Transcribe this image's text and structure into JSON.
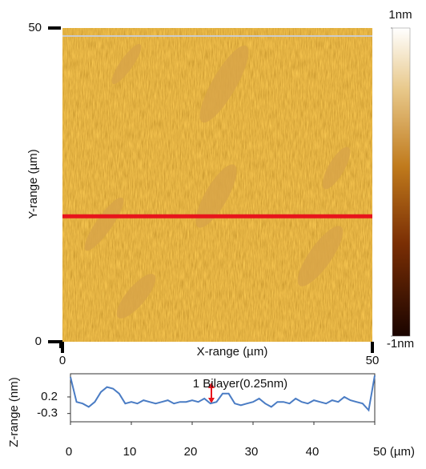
{
  "chart_data": [
    {
      "type": "image",
      "xlabel": "X-range (µm)",
      "ylabel": "Y-range (µm)",
      "xlim": [
        0,
        50
      ],
      "ylim": [
        0,
        50
      ],
      "xticks": [
        0,
        50
      ],
      "yticks": [
        0,
        50
      ],
      "profile_y": 20,
      "profile_color": "#e8141c",
      "clim": [
        -1,
        1
      ],
      "cticks": [
        {
          "value": 1,
          "label": "1nm"
        },
        {
          "value": -1,
          "label": "-1nm"
        }
      ]
    },
    {
      "type": "line",
      "ylabel": "Z-range (nm)",
      "color": "#4a7cc4",
      "annotation": "1 Bilayer(0.25nm)",
      "xlim": [
        0,
        50
      ],
      "ylim": [
        -0.55,
        0.9
      ],
      "xticks": [
        0,
        10,
        20,
        30,
        40,
        {
          "value": 50,
          "label": "50 (µm)"
        }
      ],
      "yticks": [
        0.2,
        -0.3
      ],
      "x": [
        0,
        1,
        2,
        3,
        4,
        5,
        6,
        7,
        8,
        9,
        10,
        11,
        12,
        13,
        14,
        15,
        16,
        17,
        18,
        19,
        20,
        21,
        22,
        23,
        24,
        25,
        26,
        27,
        28,
        29,
        30,
        31,
        32,
        33,
        34,
        35,
        36,
        37,
        38,
        39,
        40,
        41,
        42,
        43,
        44,
        45,
        46,
        47,
        48,
        49,
        50
      ],
      "values": [
        0.8,
        0.05,
        0.0,
        -0.1,
        0.05,
        0.35,
        0.5,
        0.45,
        0.3,
        0.0,
        0.05,
        0.0,
        0.1,
        0.05,
        0.0,
        0.05,
        0.1,
        0.0,
        0.05,
        0.05,
        0.1,
        0.05,
        0.15,
        0.0,
        0.05,
        0.3,
        0.3,
        0.0,
        -0.05,
        0.0,
        0.05,
        0.15,
        0.0,
        -0.1,
        0.05,
        0.05,
        0.0,
        0.15,
        0.05,
        0.0,
        0.1,
        0.05,
        0.0,
        0.1,
        0.05,
        0.2,
        0.1,
        0.05,
        0.0,
        -0.2,
        0.85
      ]
    }
  ]
}
